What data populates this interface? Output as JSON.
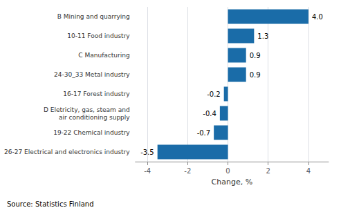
{
  "chart_data": {
    "type": "bar",
    "orientation": "horizontal",
    "categories": [
      "26-27 Electrical and electronics industry",
      "19-22 Chemical industry",
      "D Eletricity, gas, steam and\nair conditioning supply",
      "16-17 Forest industry",
      "24-30_33 Metal industry",
      "C Manufacturing",
      "10-11 Food industry",
      "B Mining and quarrying"
    ],
    "values": [
      -3.5,
      -0.7,
      -0.4,
      -0.2,
      0.9,
      0.9,
      1.3,
      4.0
    ],
    "value_labels": [
      "-3.5",
      "-0.7",
      "-0.4",
      "-0.2",
      "0.9",
      "0.9",
      "1.3",
      "4.0"
    ],
    "data_labels": true,
    "color": "#1a6ca8",
    "xlabel": "Change, %",
    "xlim": [
      -4.6,
      5.0
    ],
    "xticks": [
      -4,
      -2,
      0,
      2,
      4
    ],
    "grid": true,
    "source": "Source: Statistics Finland"
  }
}
